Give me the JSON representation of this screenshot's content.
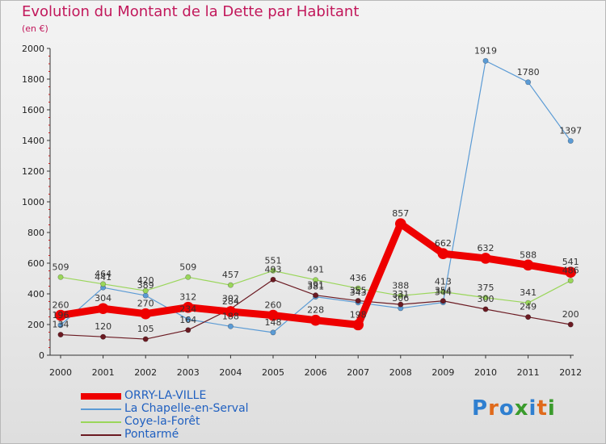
{
  "title": "Evolution du Montant de la Dette par Habitant",
  "subtitle": "(en €)",
  "logo": {
    "letters": [
      "P",
      "r",
      "o",
      "x",
      "i",
      "t",
      "i"
    ],
    "colors": [
      "#2f7fd0",
      "#e06a1b",
      "#2f7fd0",
      "#3a9b2c",
      "#2f7fd0",
      "#e06a1b",
      "#3a9b2c"
    ]
  },
  "chart_data": {
    "type": "line",
    "categories": [
      "2000",
      "2001",
      "2002",
      "2003",
      "2004",
      "2005",
      "2006",
      "2007",
      "2008",
      "2009",
      "2010",
      "2011",
      "2012"
    ],
    "ylim": [
      0,
      2000
    ],
    "yticks": [
      "0",
      "200",
      "400",
      "600",
      "800",
      "1000",
      "1200",
      "1400",
      "1600",
      "1800",
      "2000"
    ],
    "grid": false,
    "legend": "bottom-left",
    "series": [
      {
        "name": "ORRY-LA-VILLE",
        "color": "#ee0000",
        "stroke_width": 9,
        "values": [
          260,
          304,
          270,
          312,
          284,
          260,
          228,
          198,
          857,
          662,
          632,
          588,
          541
        ]
      },
      {
        "name": "La Chapelle-en-Serval",
        "color": "#5b9bd5",
        "stroke_width": 1.2,
        "values": [
          196,
          441,
          389,
          234,
          188,
          148,
          381,
          343,
          306,
          344,
          1919,
          1780,
          1397
        ]
      },
      {
        "name": "Coye-la-Forêt",
        "color": "#9ad65a",
        "stroke_width": 1.2,
        "values": [
          509,
          464,
          420,
          509,
          457,
          551,
          491,
          436,
          388,
          413,
          375,
          341,
          486
        ]
      },
      {
        "name": "Pontarmé",
        "color": "#6b1a22",
        "stroke_width": 1.2,
        "values": [
          134,
          120,
          105,
          164,
          302,
          493,
          391,
          355,
          331,
          354,
          300,
          249,
          200
        ]
      }
    ]
  }
}
